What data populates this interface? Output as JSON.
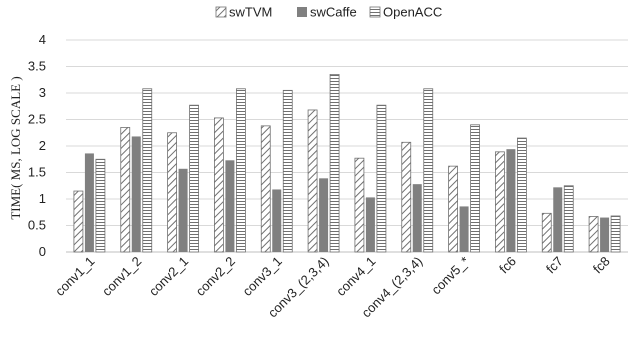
{
  "chart_data": {
    "type": "bar",
    "title": "",
    "xlabel": "",
    "ylabel": "TIME( MS, LOG SCALE )",
    "ylim": [
      0,
      4
    ],
    "yticks": [
      "0",
      "0.5",
      "1",
      "1.5",
      "2",
      "2.5",
      "3",
      "3.5",
      "4"
    ],
    "grid": "horizontal",
    "legend_position": "top",
    "categories": [
      "conv1_1",
      "conv1_2",
      "conv2_1",
      "conv2_2",
      "conv3_1",
      "conv3_(2,3,4)",
      "conv4_1",
      "conv4_(2,3,4)",
      "conv5_*",
      "fc6",
      "fc7",
      "fc8"
    ],
    "series": [
      {
        "name": "swTVM",
        "pattern": "diagonal",
        "color": "#808080",
        "values": [
          1.15,
          2.35,
          2.25,
          2.53,
          2.38,
          2.68,
          1.77,
          2.07,
          1.62,
          1.89,
          0.73,
          0.67
        ]
      },
      {
        "name": "swCaffe",
        "pattern": "solid",
        "color": "#808080",
        "values": [
          1.86,
          2.18,
          1.57,
          1.73,
          1.18,
          1.39,
          1.03,
          1.28,
          0.86,
          1.94,
          1.22,
          0.65
        ]
      },
      {
        "name": "OpenACC",
        "pattern": "horizontal",
        "color": "#808080",
        "values": [
          1.75,
          3.08,
          2.77,
          3.08,
          3.05,
          3.35,
          2.77,
          3.08,
          2.4,
          2.15,
          1.25,
          0.68
        ]
      }
    ]
  }
}
